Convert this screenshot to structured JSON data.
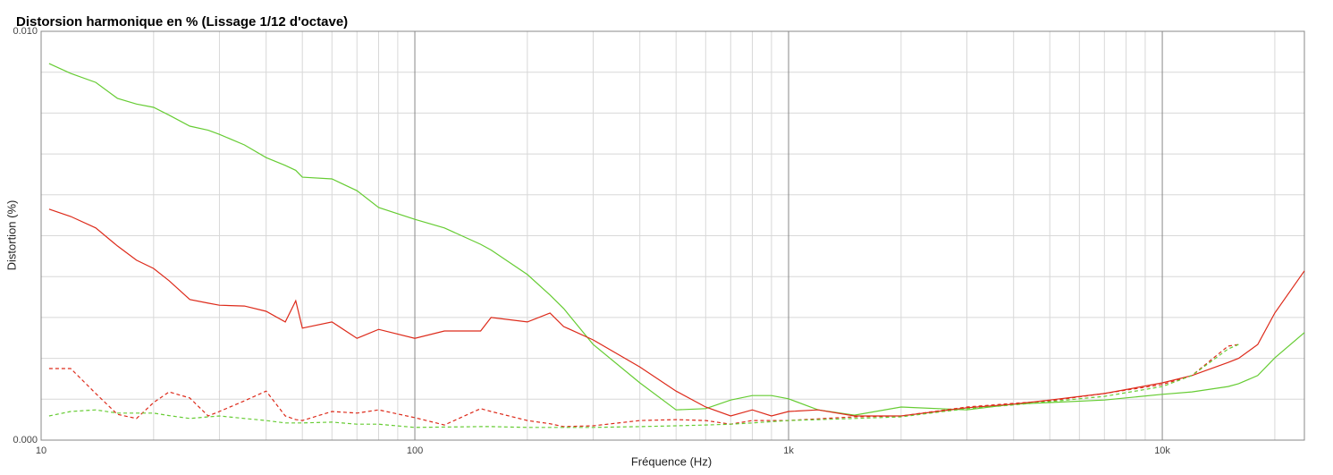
{
  "chart_data": {
    "type": "line",
    "title": "Distorsion harmonique en % (Lissage 1/12 d'octave)",
    "x_label": "Fréquence (Hz)",
    "y_label": "Distortion (%)",
    "x_scale": "log",
    "xlim": [
      10,
      24000
    ],
    "xticks": [
      10,
      100,
      {
        "value": 1000,
        "label": "1k"
      },
      {
        "value": 10000,
        "label": "10k"
      }
    ],
    "ylim": [
      0,
      0.01
    ],
    "yticks": [
      {
        "value": 0,
        "label": "0.000"
      },
      {
        "value": 0.01,
        "label": "0.010"
      }
    ],
    "yminor": [
      0.001,
      0.002,
      0.003,
      0.004,
      0.005,
      0.006,
      0.007,
      0.008,
      0.009
    ],
    "grid": true,
    "x": [
      10.5,
      12,
      14,
      16,
      18,
      20,
      22,
      25,
      28,
      30,
      35,
      40,
      45,
      48,
      50,
      60,
      70,
      80,
      100,
      120,
      150,
      160,
      200,
      230,
      250,
      300,
      400,
      500,
      600,
      700,
      800,
      900,
      1000,
      1200,
      1500,
      2000,
      3000,
      4000,
      5000,
      7000,
      10000,
      12000,
      15000,
      16000,
      18000,
      20000,
      24000
    ],
    "series": [
      {
        "color": "#66cc33",
        "dash": false,
        "values": [
          0.00921,
          0.00897,
          0.00875,
          0.00836,
          0.00822,
          0.00814,
          0.00795,
          0.00768,
          0.00758,
          0.00748,
          0.00722,
          0.00691,
          0.00672,
          0.0066,
          0.00643,
          0.00639,
          0.0061,
          0.00569,
          0.0054,
          0.00519,
          0.00479,
          0.00465,
          0.00405,
          0.00355,
          0.00322,
          0.00234,
          0.0014,
          0.00074,
          0.00077,
          0.00098,
          0.00109,
          0.00109,
          0.00101,
          0.00074,
          0.00061,
          0.00081,
          0.00074,
          0.00088,
          0.00092,
          0.00098,
          0.00112,
          0.00118,
          0.00131,
          0.00138,
          0.00158,
          0.00201,
          0.00263
        ]
      },
      {
        "color": "#dd2a1a",
        "dash": false,
        "values": [
          0.00565,
          0.00547,
          0.00519,
          0.00475,
          0.0044,
          0.0042,
          0.0039,
          0.00344,
          0.00335,
          0.0033,
          0.00328,
          0.00315,
          0.00289,
          0.00341,
          0.00274,
          0.00289,
          0.00249,
          0.00271,
          0.00249,
          0.00267,
          0.00267,
          0.003,
          0.00289,
          0.00311,
          0.00278,
          0.00245,
          0.00179,
          0.0012,
          0.00081,
          0.00059,
          0.00074,
          0.00059,
          0.0007,
          0.00074,
          0.00059,
          0.00059,
          0.00079,
          0.00088,
          0.00098,
          0.00114,
          0.0014,
          0.00158,
          0.0019,
          0.002,
          0.00234,
          0.00311,
          0.00414
        ]
      },
      {
        "color": "#dd2a1a",
        "dash": true,
        "values": [
          0.00175,
          0.00175,
          0.00114,
          0.00063,
          0.00053,
          0.00092,
          0.00118,
          0.00103,
          0.00059,
          0.0007,
          0.00096,
          0.0012,
          0.00059,
          0.0005,
          0.00048,
          0.0007,
          0.00066,
          0.00074,
          0.00055,
          0.00037,
          0.00077,
          0.0007,
          0.00048,
          0.0004,
          0.00033,
          0.00035,
          0.00048,
          0.0005,
          0.00048,
          0.00039,
          0.00048,
          0.00048,
          0.00048,
          0.00052,
          0.00057,
          0.00059,
          0.00081,
          0.0009,
          0.00096,
          0.00114,
          0.00136,
          0.00158,
          0.0023,
          0.00234,
          null,
          null,
          null
        ]
      },
      {
        "color": "#66cc33",
        "dash": true,
        "values": [
          0.00059,
          0.0007,
          0.00074,
          0.00066,
          0.00066,
          0.00066,
          0.0006,
          0.00053,
          0.00057,
          0.00059,
          0.00053,
          0.00048,
          0.00042,
          0.00042,
          0.00042,
          0.00044,
          0.00039,
          0.00039,
          0.00031,
          0.00032,
          0.00033,
          0.00033,
          0.00031,
          0.00031,
          0.00031,
          0.00031,
          0.00033,
          0.00035,
          0.00037,
          0.00039,
          0.00042,
          0.00045,
          0.00048,
          0.0005,
          0.00053,
          0.00057,
          0.00077,
          0.00086,
          0.00094,
          0.00107,
          0.00131,
          0.00158,
          0.00223,
          0.00234,
          null,
          null,
          null
        ]
      }
    ]
  }
}
